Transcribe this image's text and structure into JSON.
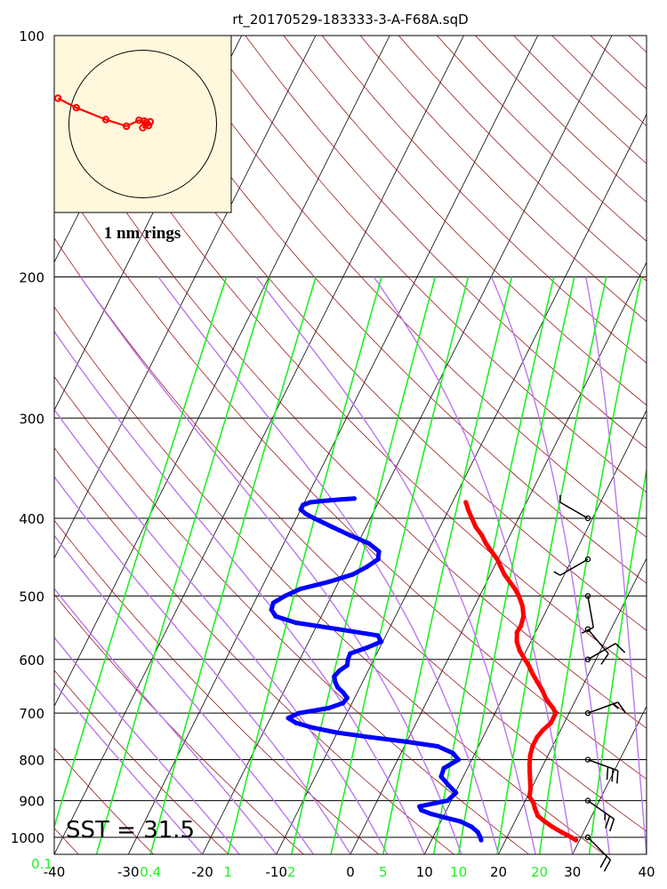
{
  "chart_data": {
    "type": "skew-t log-p sounding",
    "title": "rt_20170529-183333-3-A-F68A.sqD",
    "x_axis": {
      "range": [
        -40,
        40
      ],
      "ticks": [
        "-40",
        "-30",
        "-20",
        "-10",
        "0",
        "10",
        "20",
        "30",
        "40"
      ]
    },
    "y_axis": {
      "scale": "log",
      "range": [
        1050,
        100
      ],
      "ticks": [
        {
          "p": 100,
          "label": "100"
        },
        {
          "p": 200,
          "label": "200"
        },
        {
          "p": 300,
          "label": "300"
        },
        {
          "p": 400,
          "label": "400"
        },
        {
          "p": 500,
          "label": "500"
        },
        {
          "p": 600,
          "label": "600"
        },
        {
          "p": 700,
          "label": "700"
        },
        {
          "p": 800,
          "label": "800"
        },
        {
          "p": 900,
          "label": "900"
        },
        {
          "p": 1000,
          "label": "1000"
        }
      ]
    },
    "mixing_ratio_labels": [
      {
        "w": 0.1,
        "label": "0.1"
      },
      {
        "w": 0.4,
        "label": "0.4"
      },
      {
        "w": 1,
        "label": "1"
      },
      {
        "w": 2,
        "label": "2"
      },
      {
        "w": 5,
        "label": "5"
      },
      {
        "w": 10,
        "label": "10"
      },
      {
        "w": 20,
        "label": "20"
      }
    ],
    "temperature": {
      "color": "#ff0000",
      "p": [
        1008,
        1000,
        985,
        970,
        955,
        940,
        920,
        905,
        890,
        870,
        850,
        830,
        810,
        790,
        770,
        750,
        735,
        720,
        700,
        690,
        680,
        670,
        655,
        640,
        625,
        610,
        600,
        585,
        570,
        555,
        545,
        530,
        515,
        500,
        490,
        480,
        470,
        460,
        450,
        440,
        430,
        420,
        410,
        400,
        390,
        382
      ],
      "t": [
        29.5,
        28.7,
        27.0,
        25.4,
        24.0,
        22.7,
        21.8,
        21.2,
        20.3,
        19.9,
        19.3,
        18.7,
        18.1,
        17.6,
        17.3,
        17.3,
        17.6,
        18.2,
        18.2,
        17.5,
        16.6,
        15.8,
        14.8,
        13.6,
        12.4,
        11.3,
        10.4,
        9.1,
        8.1,
        7.5,
        7.6,
        7.3,
        6.5,
        5.3,
        4.3,
        3.1,
        1.9,
        0.9,
        -0.1,
        -1.4,
        -2.7,
        -3.8,
        -5.2,
        -6.3,
        -7.4,
        -8.2
      ]
    },
    "dewpoint": {
      "color": "#0000ff",
      "p": [
        1008,
        1000,
        985,
        970,
        955,
        945,
        935,
        925,
        915,
        900,
        880,
        860,
        840,
        820,
        800,
        785,
        770,
        760,
        750,
        740,
        730,
        720,
        710,
        700,
        690,
        680,
        670,
        660,
        650,
        640,
        630,
        620,
        610,
        600,
        590,
        580,
        570,
        560,
        550,
        540,
        530,
        520,
        510,
        500,
        490,
        480,
        470,
        460,
        450,
        440,
        430,
        420,
        410,
        400,
        395,
        390,
        385,
        382,
        381,
        380,
        379,
        378
      ],
      "t": [
        16.7,
        16.4,
        15.7,
        14.5,
        12.6,
        10.3,
        8.2,
        6.6,
        6.1,
        9.5,
        10.1,
        8.5,
        7.0,
        6.8,
        8.2,
        7.0,
        4.5,
        0.0,
        -5.3,
        -10.1,
        -13.6,
        -16.2,
        -17.6,
        -16.5,
        -12.8,
        -11.2,
        -11.0,
        -11.9,
        -13.0,
        -13.7,
        -14.2,
        -13.9,
        -13.2,
        -13.5,
        -13.6,
        -11.7,
        -10.2,
        -11.1,
        -16.9,
        -23.0,
        -26.2,
        -27.2,
        -27.4,
        -26.3,
        -24.7,
        -21.3,
        -18.6,
        -17.2,
        -16.2,
        -16.6,
        -18.5,
        -21.6,
        -24.6,
        -27.6,
        -29.0,
        -30.0,
        -30.0,
        -29.2,
        -28.0,
        -26.8,
        -25.4,
        -23.5
      ]
    },
    "wind_barbs": [
      {
        "p": 1000,
        "dir": 135,
        "speed_kt": 20
      },
      {
        "p": 900,
        "dir": 125,
        "speed_kt": 25
      },
      {
        "p": 800,
        "dir": 110,
        "speed_kt": 30
      },
      {
        "p": 700,
        "dir": 70,
        "speed_kt": 15
      },
      {
        "p": 600,
        "dir": 60,
        "speed_kt": 10
      },
      {
        "p": 550,
        "dir": 140,
        "speed_kt": 10
      },
      {
        "p": 500,
        "dir": 170,
        "speed_kt": 10
      },
      {
        "p": 450,
        "dir": 240,
        "speed_kt": 5
      },
      {
        "p": 400,
        "dir": 300,
        "speed_kt": 5
      }
    ],
    "annotation": "SST = 31.5",
    "hodograph": {
      "ring_label": "1 nm rings",
      "rings_nm": [
        1
      ],
      "track_nm": [
        [
          -1.15,
          0.35
        ],
        [
          -0.9,
          0.22
        ],
        [
          -0.5,
          0.06
        ],
        [
          -0.22,
          -0.03
        ],
        [
          -0.05,
          0.05
        ],
        [
          0.05,
          0.02
        ],
        [
          0.1,
          0.03
        ],
        [
          0.0,
          -0.05
        ],
        [
          0.08,
          -0.02
        ],
        [
          0.02,
          0.04
        ]
      ]
    }
  }
}
